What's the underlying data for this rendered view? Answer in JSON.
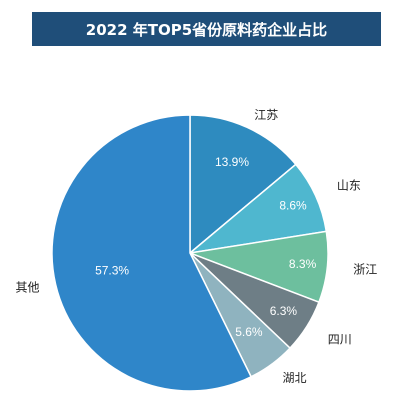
{
  "title": "2022 年TOP5省份原料药企业占比",
  "chart_data": {
    "type": "pie",
    "title": "2022 年TOP5省份原料药企业占比",
    "slices": [
      {
        "label": "江苏",
        "value": 13.9,
        "display": "13.9%",
        "color": "#2e8bbf"
      },
      {
        "label": "山东",
        "value": 8.6,
        "display": "8.6%",
        "color": "#4fb7cf"
      },
      {
        "label": "浙江",
        "value": 8.3,
        "display": "8.3%",
        "color": "#6dbf9e"
      },
      {
        "label": "四川",
        "value": 6.3,
        "display": "6.3%",
        "color": "#6e7e86"
      },
      {
        "label": "湖北",
        "value": 5.6,
        "display": "5.6%",
        "color": "#8fb3bf"
      },
      {
        "label": "其他",
        "value": 57.3,
        "display": "57.3%",
        "color": "#2f86c9"
      }
    ],
    "start": "12 o'clock",
    "direction": "clockwise",
    "legend": "none"
  }
}
